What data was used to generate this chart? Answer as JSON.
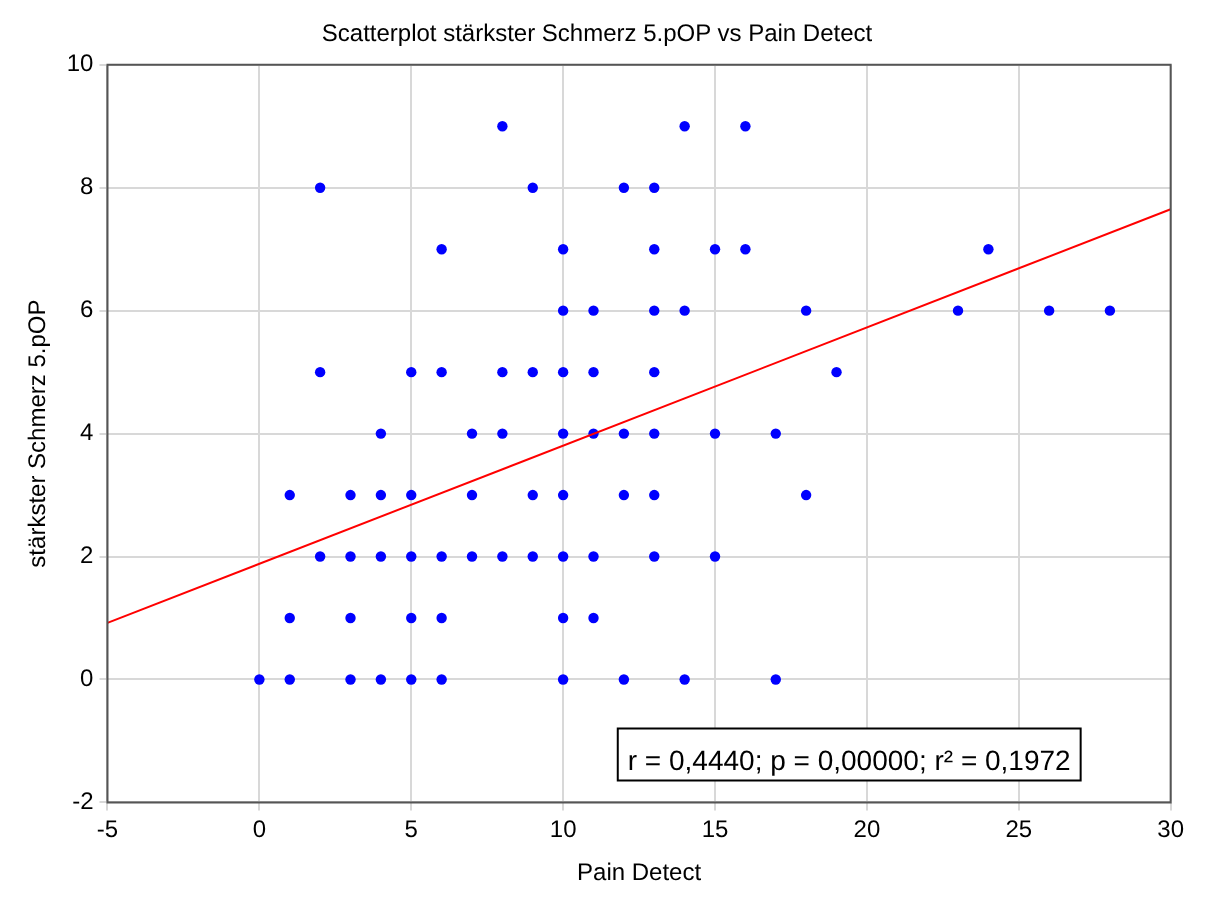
{
  "chart_data": {
    "type": "scatter",
    "title": "Scatterplot stärkster Schmerz 5.pOP vs Pain Detect",
    "xlabel": "Pain Detect",
    "ylabel": "stärkster Schmerz 5.pOP",
    "xlim": [
      -5,
      30
    ],
    "xticks": [
      -5,
      0,
      5,
      10,
      15,
      20,
      25,
      30
    ],
    "ylim": [
      -2,
      10
    ],
    "yticks": [
      -2,
      0,
      2,
      4,
      6,
      8,
      10
    ],
    "grid": true,
    "legend": false,
    "annotations": [
      "r = 0,4440; p = 0,00000; r² = 0,1972"
    ],
    "series": [
      {
        "marker": "circle",
        "color": "#0000ff",
        "x": [
          8,
          14,
          16,
          2,
          9,
          12,
          13,
          6,
          10,
          13,
          15,
          16,
          24,
          10,
          11,
          13,
          14,
          18,
          23,
          26,
          28,
          2,
          5,
          6,
          8,
          9,
          10,
          11,
          13,
          19,
          4,
          7,
          8,
          10,
          11,
          12,
          13,
          15,
          17,
          1,
          3,
          4,
          5,
          7,
          9,
          10,
          12,
          13,
          18,
          2,
          3,
          4,
          5,
          6,
          7,
          8,
          9,
          10,
          11,
          13,
          15,
          1,
          3,
          5,
          6,
          10,
          11,
          0,
          1,
          3,
          4,
          5,
          6,
          10,
          12,
          14,
          17
        ],
        "values": [
          9,
          9,
          9,
          8,
          8,
          8,
          8,
          7,
          7,
          7,
          7,
          7,
          7,
          6,
          6,
          6,
          6,
          6,
          6,
          6,
          6,
          5,
          5,
          5,
          5,
          5,
          5,
          5,
          5,
          5,
          4,
          4,
          4,
          4,
          4,
          4,
          4,
          4,
          4,
          3,
          3,
          3,
          3,
          3,
          3,
          3,
          3,
          3,
          3,
          2,
          2,
          2,
          2,
          2,
          2,
          2,
          2,
          2,
          2,
          2,
          2,
          1,
          1,
          1,
          1,
          1,
          1,
          0,
          0,
          0,
          0,
          0,
          0,
          0,
          0,
          0,
          0
        ]
      },
      {
        "type": "line",
        "marker": "none",
        "color": "#ff0000",
        "x": [
          -5,
          30
        ],
        "values": [
          0.92,
          7.65
        ]
      }
    ]
  }
}
